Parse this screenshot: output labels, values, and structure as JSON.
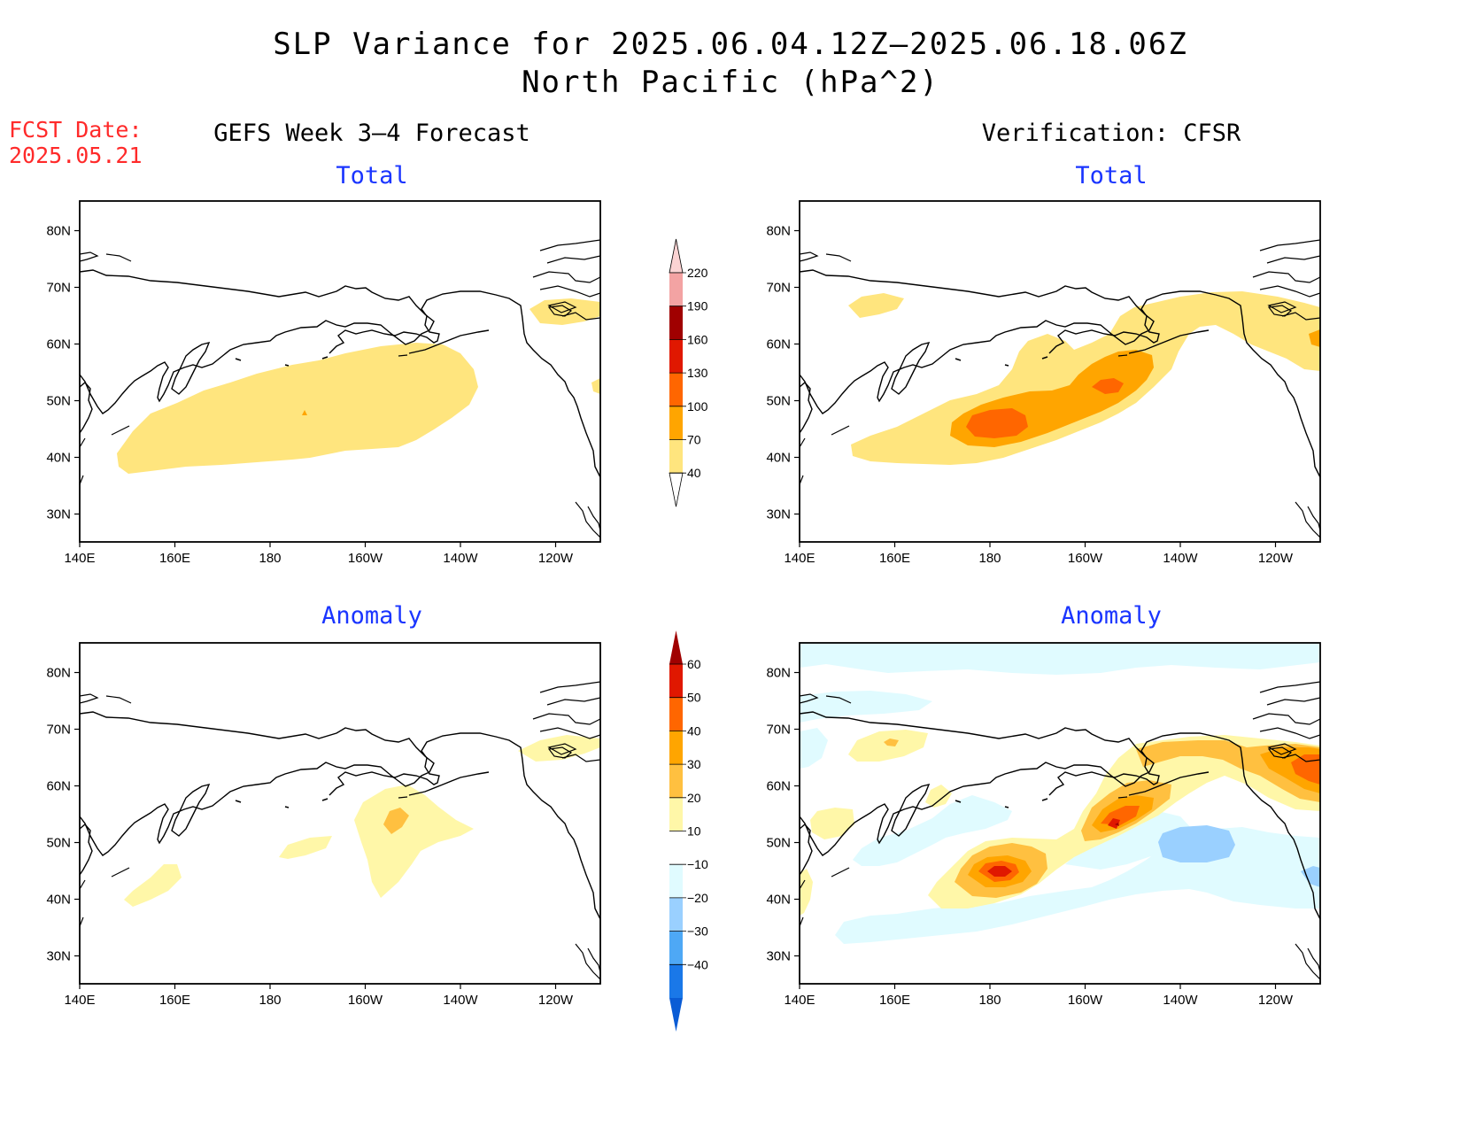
{
  "title": "SLP Variance for 2025.06.04.12Z—2025.06.18.06Z",
  "subtitle": "North Pacific (hPa^2)",
  "fcst_label": "FCST Date:",
  "fcst_date": "2025.05.21",
  "left_column_title": "GEFS Week 3—4 Forecast",
  "right_column_title": "Verification: CFSR",
  "panels": {
    "top_left": "Total",
    "top_right": "Total",
    "bottom_left": "Anomaly",
    "bottom_right": "Anomaly"
  },
  "lon_labels": [
    "140E",
    "160E",
    "180",
    "160W",
    "140W",
    "120W"
  ],
  "lat_labels": [
    "80N",
    "70N",
    "60N",
    "50N",
    "40N",
    "30N"
  ],
  "total_colorbar": {
    "levels": [
      "220",
      "190",
      "160",
      "130",
      "100",
      "70",
      "40"
    ],
    "colors": [
      "#fbd3d3",
      "#f3a3a3",
      "#a00000",
      "#e01800",
      "#ff6600",
      "#ffa500",
      "#ffe57e"
    ]
  },
  "anomaly_colorbar": {
    "levels": [
      "60",
      "50",
      "40",
      "30",
      "20",
      "10",
      "−10",
      "−20",
      "−30",
      "−40"
    ],
    "colors": [
      "#a00000",
      "#e01800",
      "#ff6600",
      "#ffa500",
      "#ffc040",
      "#fff7a8",
      "#ffffff",
      "#e0fbff",
      "#9ad0ff",
      "#4ea8f5",
      "#1a78e8",
      "#0a5cd5"
    ]
  },
  "chart_data": {
    "type": "heatmap",
    "projection": "lat-lon",
    "lon_range": [
      "140E",
      "110W"
    ],
    "lat_range": [
      "25N",
      "85N"
    ],
    "panels": [
      {
        "name": "GEFS Week 3-4 Forecast Total",
        "units": "hPa^2",
        "max_shaded_level": "70-100 (small spot)",
        "dominant_level": "40-70"
      },
      {
        "name": "Verification CFSR Total",
        "units": "hPa^2",
        "max_shaded_level": "100-130",
        "dominant_level": "40-100"
      },
      {
        "name": "GEFS Week 3-4 Forecast Anomaly",
        "units": "hPa^2",
        "max_shaded_level": "20-30",
        "dominant_level": "10-20"
      },
      {
        "name": "Verification CFSR Anomaly",
        "units": "hPa^2",
        "max_shaded_level": "50-60",
        "min_shaded_level": "-20 to -30"
      }
    ]
  }
}
